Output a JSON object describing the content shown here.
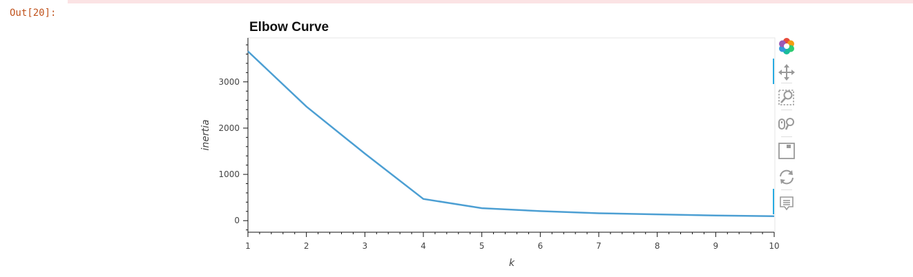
{
  "cell": {
    "prompt": "Out[20]:"
  },
  "chart_data": {
    "type": "line",
    "title": "Elbow Curve",
    "xlabel": "k",
    "ylabel": "inertia",
    "x": [
      1,
      2,
      3,
      4,
      5,
      6,
      7,
      8,
      9,
      10
    ],
    "series": [
      {
        "values": [
          3660,
          2465,
          1450,
          470,
          270,
          205,
          160,
          135,
          110,
          95
        ]
      }
    ],
    "xlim": [
      1,
      10
    ],
    "ylim": [
      -250,
      3950
    ],
    "xticks": [
      1,
      2,
      3,
      4,
      5,
      6,
      7,
      8,
      9,
      10
    ],
    "yticks": [
      0,
      1000,
      2000,
      3000
    ],
    "line_color": "#4c9fd3",
    "grid": false
  },
  "toolbar": {
    "tools": [
      "bokeh-logo-icon",
      "pan-icon",
      "box-zoom-icon",
      "wheel-zoom-icon",
      "save-icon",
      "reset-icon",
      "hover-icon"
    ],
    "active_color": "#26aae1"
  }
}
